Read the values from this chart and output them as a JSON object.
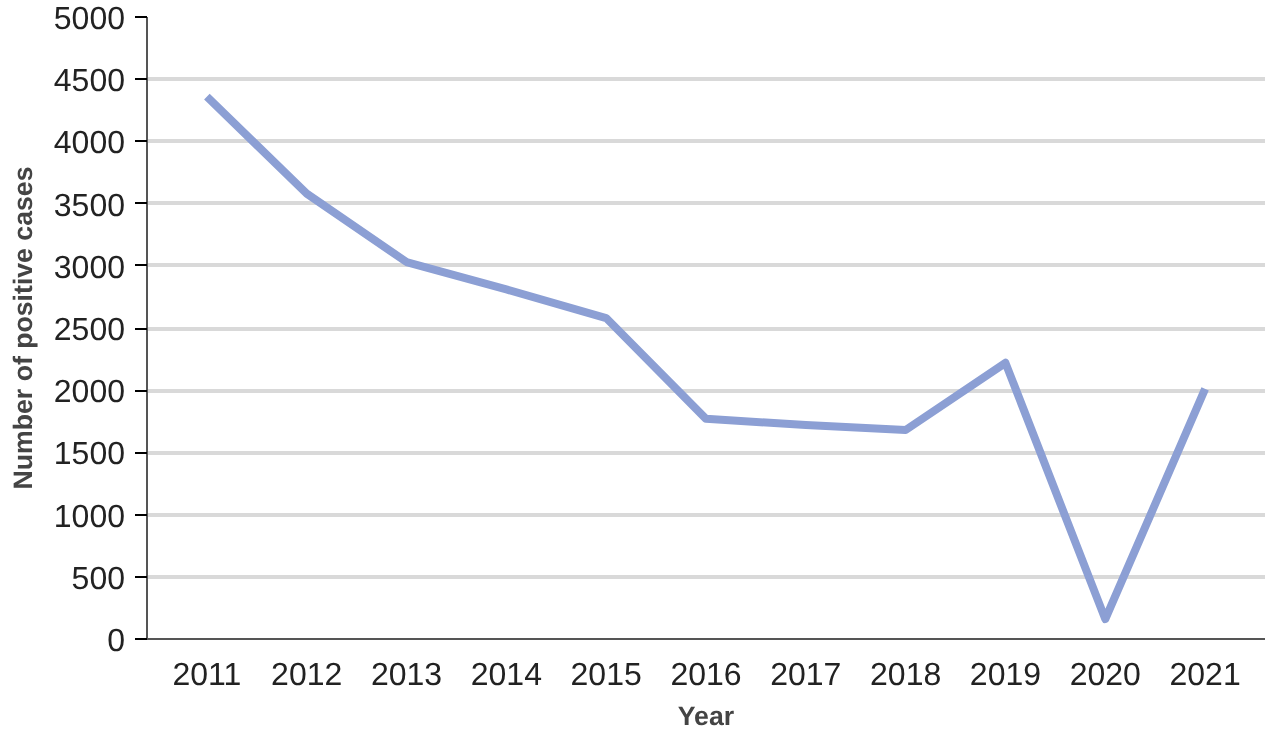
{
  "chart_data": {
    "type": "line",
    "xlabel": "Year",
    "ylabel": "Number of positive cases",
    "categories": [
      "2011",
      "2012",
      "2013",
      "2014",
      "2015",
      "2016",
      "2017",
      "2018",
      "2019",
      "2020",
      "2021"
    ],
    "series": [
      {
        "color": "#8c9fd4",
        "values": [
          4360,
          3580,
          3030,
          2810,
          2580,
          1770,
          1720,
          1680,
          2220,
          160,
          2010
        ]
      }
    ],
    "ylim": [
      0,
      5000
    ],
    "yticks": [
      0,
      500,
      1000,
      1500,
      2000,
      2500,
      3000,
      3500,
      4000,
      4500,
      5000
    ],
    "grid": "y"
  }
}
